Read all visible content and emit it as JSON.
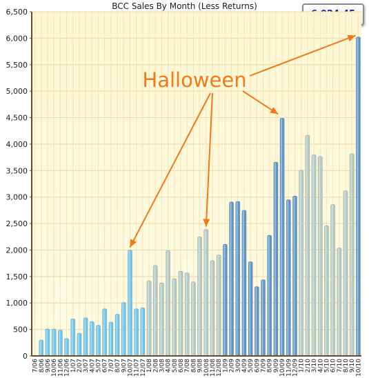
{
  "chart_data": {
    "type": "bar",
    "title": "BCC Sales By Month (Less Returns)",
    "highlight_value": "6,024.45",
    "annotation": "Halloween",
    "ylim": [
      0,
      6500
    ],
    "y_ticks": [
      "0",
      "500",
      "1,000",
      "1,500",
      "2,000",
      "2,500",
      "3,000",
      "3,500",
      "4,000",
      "4,500",
      "5,000",
      "5,500",
      "6,000",
      "6,500"
    ],
    "y_tick_values": [
      0,
      500,
      1000,
      1500,
      2000,
      2500,
      3000,
      3500,
      4000,
      4500,
      5000,
      5500,
      6000,
      6500
    ],
    "grid": true,
    "categories": [
      "7/06",
      "8/06",
      "9/06",
      "10/06",
      "11/06",
      "12/06",
      "1/07",
      "2/07",
      "3/07",
      "4/07",
      "5/07",
      "6/07",
      "7/07",
      "8/07",
      "9/07",
      "10/07",
      "11/07",
      "12/07",
      "1/08",
      "2/08",
      "3/08",
      "4/08",
      "5/08",
      "6/08",
      "7/08",
      "8/08",
      "9/08",
      "10/08",
      "11/08",
      "12/08",
      "1/09",
      "2/09",
      "3/09",
      "4/09",
      "5/09",
      "6/09",
      "7/09",
      "8/09",
      "9/09",
      "10/09",
      "11/09",
      "12/09",
      "1/10",
      "2/10",
      "3/10",
      "4/10",
      "5/10",
      "6/10",
      "7/10",
      "8/10",
      "9/10",
      "10/10"
    ],
    "values": [
      0,
      300,
      510,
      510,
      490,
      330,
      700,
      430,
      720,
      650,
      580,
      890,
      640,
      790,
      1010,
      2000,
      890,
      910,
      1420,
      1710,
      1380,
      1990,
      1460,
      1600,
      1570,
      1400,
      2250,
      2390,
      1800,
      1910,
      2110,
      2910,
      2920,
      2750,
      1780,
      1310,
      1440,
      2280,
      3660,
      4490,
      2950,
      3020,
      3510,
      4170,
      3800,
      3770,
      2460,
      2860,
      2040,
      3120,
      3820,
      6024.45
    ],
    "color_groups": [
      {
        "from": 0,
        "to": 17,
        "color": "#6fc4ea"
      },
      {
        "from": 18,
        "to": 29,
        "color": "#b4c9c4"
      },
      {
        "from": 30,
        "to": 41,
        "color": "#5f96c9"
      },
      {
        "from": 42,
        "to": 50,
        "color": "#b4c9c4"
      },
      {
        "from": 51,
        "to": 51,
        "color": "#5f96c9"
      }
    ],
    "annotation_color": "#f07a1a",
    "annotation_targets": [
      15,
      27,
      39,
      51
    ]
  }
}
